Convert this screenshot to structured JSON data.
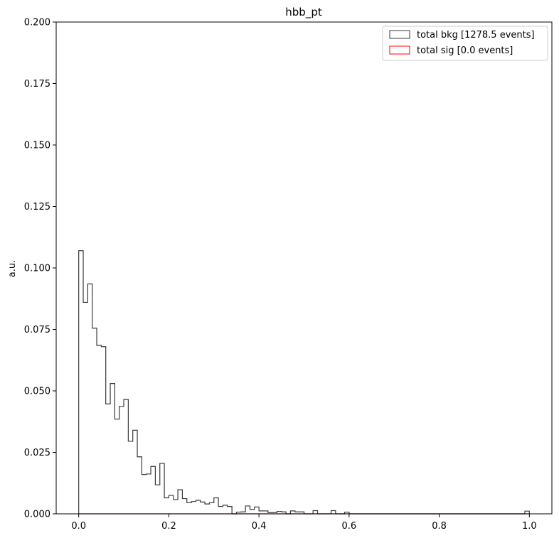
{
  "chart_data": {
    "type": "histogram",
    "title": "hbb_pt",
    "xlabel": "",
    "ylabel": "a.u.",
    "xlim": [
      -0.05,
      1.05
    ],
    "ylim": [
      0,
      0.2
    ],
    "xticks": [
      "0.0",
      "0.2",
      "0.4",
      "0.6",
      "0.8",
      "1.0"
    ],
    "yticks": [
      "0.000",
      "0.025",
      "0.050",
      "0.075",
      "0.100",
      "0.125",
      "0.150",
      "0.175",
      "0.200"
    ],
    "legend_position": "top-right",
    "bin_width": 0.01,
    "series": [
      {
        "name": "total bkg [1278.5 events]",
        "color": "#3a3a3a",
        "bin_start": 0.0,
        "values": [
          0.107,
          0.086,
          0.0935,
          0.0755,
          0.0685,
          0.068,
          0.0447,
          0.053,
          0.0385,
          0.0437,
          0.0465,
          0.0295,
          0.034,
          0.0232,
          0.016,
          0.0162,
          0.0193,
          0.0118,
          0.0205,
          0.0065,
          0.0075,
          0.0058,
          0.0098,
          0.0062,
          0.0045,
          0.005,
          0.0055,
          0.0048,
          0.004,
          0.0045,
          0.0065,
          0.003,
          0.0035,
          0.003,
          0.0,
          0.0007,
          0.0008,
          0.0032,
          0.0018,
          0.0028,
          0.0012,
          0.0012,
          0.0005,
          0.0005,
          0.001,
          0.0008,
          0.0,
          0.0012,
          0.0008,
          0.0008,
          0.0,
          0.0,
          0.0013,
          0.0,
          0.0,
          0.0,
          0.0013,
          0.0,
          0.0,
          0.0007,
          0.0,
          0.0,
          0.0,
          0.0,
          0.0,
          0.0,
          0.0,
          0.0,
          0.0,
          0.0,
          0.0,
          0.0,
          0.0,
          0.0,
          0.0,
          0.0,
          0.0,
          0.0,
          0.0,
          0.0,
          0.0,
          0.0,
          0.0,
          0.0,
          0.0,
          0.0,
          0.0,
          0.0,
          0.0,
          0.0,
          0.0,
          0.0,
          0.0,
          0.0,
          0.0,
          0.0,
          0.0,
          0.0,
          0.0,
          0.0011
        ]
      },
      {
        "name": "total sig [0.0 events]",
        "color": "#ff0000",
        "bin_start": 0.0,
        "values": []
      }
    ]
  }
}
